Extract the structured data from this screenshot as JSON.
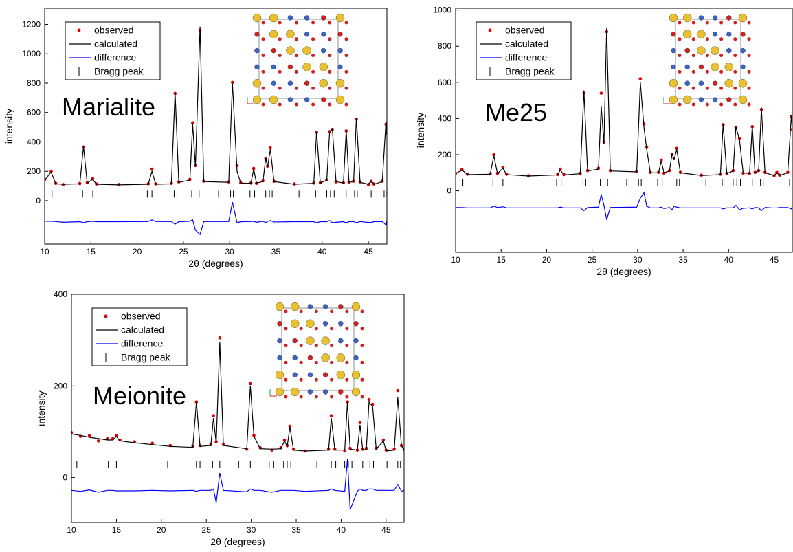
{
  "chart_data": [
    {
      "type": "line",
      "annotation": "Marialite",
      "x_label": "2θ (degrees)",
      "y_label": "intensity",
      "legend": "upper left",
      "xlim": [
        10,
        47
      ],
      "xticks": [
        10,
        15,
        20,
        25,
        30,
        35,
        40,
        45
      ],
      "ylim": [
        -295,
        1310
      ],
      "yticks": [
        0,
        200,
        400,
        600,
        800,
        1000,
        1200
      ],
      "x": [
        10,
        10.7,
        11.2,
        12,
        13.8,
        14.2,
        14.6,
        15.2,
        15.6,
        18,
        21.2,
        21.6,
        22,
        23.7,
        24.1,
        24.5,
        25.7,
        26,
        26.3,
        26.8,
        27.2,
        29.9,
        30.3,
        30.8,
        31.2,
        32.3,
        32.6,
        32.9,
        33.6,
        33.9,
        34.1,
        34.4,
        34.8,
        37,
        39.1,
        39.4,
        39.8,
        40.5,
        40.8,
        41.1,
        41.5,
        42.3,
        42.6,
        42.9,
        43.4,
        43.7,
        44.1,
        45,
        45.3,
        45.6,
        46.5,
        46.9,
        47
      ],
      "series": [
        {
          "name": "observed",
          "style": "points",
          "color": "#e00000",
          "values": [
            145,
            200,
            118,
            110,
            117,
            365,
            122,
            150,
            114,
            110,
            115,
            215,
            115,
            118,
            730,
            128,
            145,
            530,
            240,
            1160,
            133,
            128,
            805,
            240,
            122,
            120,
            220,
            118,
            135,
            285,
            235,
            360,
            132,
            114,
            120,
            465,
            122,
            142,
            470,
            485,
            128,
            122,
            475,
            127,
            133,
            555,
            128,
            110,
            132,
            114,
            133,
            520,
            460
          ]
        },
        {
          "name": "calculated",
          "style": "line",
          "color": "#000000",
          "values": [
            140,
            195,
            115,
            112,
            115,
            370,
            120,
            145,
            112,
            108,
            112,
            200,
            112,
            115,
            740,
            125,
            140,
            520,
            230,
            1185,
            130,
            125,
            800,
            200,
            120,
            118,
            215,
            120,
            130,
            290,
            230,
            350,
            130,
            112,
            118,
            470,
            120,
            140,
            460,
            490,
            130,
            120,
            480,
            125,
            130,
            560,
            125,
            112,
            135,
            112,
            130,
            540,
            450
          ]
        },
        {
          "name": "difference",
          "style": "line",
          "color": "#0000ff",
          "values": [
            -140,
            -140,
            -142,
            -147,
            -143,
            -150,
            -143,
            -140,
            -143,
            -143,
            -142,
            -130,
            -142,
            -142,
            -160,
            -143,
            -140,
            -130,
            -200,
            -230,
            -142,
            -142,
            -10,
            -150,
            -143,
            -142,
            -140,
            -147,
            -140,
            -150,
            -140,
            -135,
            -145,
            -143,
            -143,
            -150,
            -143,
            -143,
            -135,
            -150,
            -147,
            -143,
            -150,
            -143,
            -142,
            -150,
            -142,
            -148,
            -148,
            -143,
            -142,
            -165,
            -135
          ]
        },
        {
          "name": "Bragg peak",
          "style": "ticks",
          "color": "#000000",
          "x": [
            10.8,
            14.1,
            15.2,
            21.1,
            21.6,
            24.0,
            24.3,
            25.9,
            26.7,
            28.8,
            30.1,
            30.4,
            32.2,
            32.7,
            33.9,
            34.3,
            34.6,
            37.5,
            39.3,
            40.5,
            40.9,
            41.3,
            42.6,
            43.5,
            43.8,
            45.3,
            46.7,
            46.9
          ],
          "values": [
            45,
            45,
            45,
            45,
            45,
            45,
            45,
            45,
            45,
            45,
            45,
            45,
            45,
            45,
            45,
            45,
            45,
            45,
            45,
            45,
            45,
            45,
            45,
            45,
            45,
            45,
            45,
            45
          ]
        }
      ]
    },
    {
      "type": "line",
      "annotation": "Me25",
      "x_label": "2θ (degrees)",
      "y_label": "intensity",
      "legend": "upper left",
      "xlim": [
        10,
        47
      ],
      "xticks": [
        10,
        15,
        20,
        25,
        30,
        35,
        40,
        45
      ],
      "ylim": [
        -340,
        1010
      ],
      "yticks": [
        0,
        200,
        400,
        600,
        800,
        1000
      ],
      "x": [
        10,
        10.7,
        11.3,
        13.8,
        14.2,
        14.6,
        15.2,
        15.6,
        18,
        21.2,
        21.5,
        21.9,
        23.7,
        24.1,
        24.5,
        25.7,
        26,
        26.3,
        26.6,
        27,
        29.9,
        30.3,
        30.7,
        31,
        31.4,
        32.3,
        32.6,
        32.9,
        33.5,
        33.8,
        34,
        34.3,
        34.7,
        37,
        39.1,
        39.4,
        39.8,
        40.5,
        40.8,
        41.2,
        41.6,
        42.3,
        42.6,
        42.9,
        43.3,
        43.6,
        44,
        45,
        45.3,
        45.6,
        46.5,
        46.9,
        47
      ],
      "series": [
        {
          "name": "observed",
          "style": "points",
          "color": "#e00000",
          "values": [
            97,
            118,
            92,
            94,
            200,
            97,
            130,
            92,
            84,
            90,
            120,
            90,
            97,
            540,
            112,
            125,
            540,
            270,
            880,
            112,
            108,
            620,
            370,
            240,
            102,
            102,
            170,
            98,
            112,
            200,
            180,
            235,
            102,
            87,
            92,
            365,
            97,
            112,
            350,
            290,
            98,
            97,
            355,
            102,
            112,
            450,
            102,
            84,
            102,
            87,
            102,
            410,
            340
          ]
        },
        {
          "name": "calculated",
          "style": "line",
          "color": "#000000",
          "values": [
            95,
            115,
            90,
            92,
            195,
            95,
            125,
            90,
            82,
            88,
            115,
            88,
            95,
            555,
            110,
            120,
            470,
            260,
            900,
            110,
            105,
            600,
            350,
            230,
            100,
            100,
            165,
            100,
            110,
            210,
            170,
            230,
            100,
            85,
            90,
            370,
            95,
            110,
            355,
            280,
            100,
            95,
            360,
            100,
            110,
            460,
            100,
            85,
            100,
            85,
            100,
            420,
            330
          ]
        },
        {
          "name": "difference",
          "style": "line",
          "color": "#0000ff",
          "values": [
            -92,
            -92,
            -94,
            -94,
            -85,
            -92,
            -88,
            -94,
            -94,
            -94,
            -90,
            -94,
            -94,
            -110,
            -92,
            -90,
            -20,
            -80,
            -160,
            -92,
            -90,
            -40,
            -10,
            -85,
            -94,
            -94,
            -90,
            -98,
            -92,
            -105,
            -85,
            -90,
            -94,
            -94,
            -94,
            -100,
            -94,
            -94,
            -80,
            -105,
            -96,
            -94,
            -100,
            -92,
            -94,
            -110,
            -92,
            -95,
            -94,
            -92,
            -92,
            -100,
            -85
          ]
        },
        {
          "name": "Bragg peak",
          "style": "ticks",
          "color": "#000000",
          "x": [
            10.8,
            14.1,
            15.2,
            21.1,
            21.6,
            24.0,
            24.3,
            25.9,
            26.7,
            28.8,
            30.1,
            30.4,
            32.2,
            32.7,
            33.9,
            34.3,
            34.6,
            37.5,
            39.3,
            40.5,
            40.9,
            41.3,
            42.6,
            43.5,
            43.8,
            45.3,
            46.7
          ],
          "values": [
            45,
            45,
            45,
            45,
            45,
            45,
            45,
            45,
            45,
            45,
            45,
            45,
            45,
            45,
            45,
            45,
            45,
            45,
            45,
            45,
            45,
            45,
            45,
            45,
            45,
            45,
            45
          ]
        }
      ]
    },
    {
      "type": "line",
      "annotation": "Meionite",
      "x_label": "2θ (degrees)",
      "y_label": "intensity",
      "legend": "upper left",
      "xlim": [
        10,
        47
      ],
      "xticks": [
        10,
        15,
        20,
        25,
        30,
        35,
        40,
        45
      ],
      "ylim": [
        -98,
        400
      ],
      "yticks": [
        0,
        200,
        400
      ],
      "x": [
        10,
        11,
        12,
        13,
        14,
        14.6,
        15,
        15.4,
        17,
        19,
        21,
        23.5,
        23.9,
        24.3,
        25.5,
        25.8,
        26.1,
        26.5,
        26.9,
        29.5,
        29.9,
        30.3,
        31,
        32.3,
        33.3,
        33.7,
        34,
        34.3,
        34.7,
        36,
        38.6,
        38.9,
        39.3,
        40.4,
        40.7,
        41,
        41.8,
        42.1,
        42.4,
        42.8,
        43.1,
        43.5,
        43.9,
        44.7,
        45,
        45.9,
        46.3,
        46.7,
        47
      ],
      "series": [
        {
          "name": "observed",
          "style": "points",
          "color": "#e00000",
          "values": [
            98,
            90,
            92,
            80,
            85,
            85,
            92,
            82,
            78,
            75,
            70,
            68,
            165,
            70,
            72,
            135,
            78,
            305,
            72,
            62,
            205,
            92,
            65,
            60,
            65,
            82,
            70,
            112,
            62,
            58,
            62,
            135,
            62,
            58,
            165,
            64,
            60,
            120,
            62,
            64,
            170,
            160,
            64,
            82,
            60,
            62,
            190,
            70,
            62
          ]
        },
        {
          "name": "calculated",
          "style": "line",
          "color": "#000000",
          "values": [
            95,
            92,
            88,
            85,
            82,
            82,
            90,
            80,
            76,
            72,
            68,
            66,
            165,
            68,
            70,
            130,
            75,
            295,
            70,
            63,
            200,
            90,
            63,
            62,
            63,
            80,
            68,
            110,
            60,
            58,
            60,
            130,
            60,
            60,
            165,
            62,
            60,
            115,
            60,
            62,
            165,
            155,
            62,
            80,
            58,
            60,
            175,
            70,
            60
          ]
        },
        {
          "name": "difference",
          "style": "line",
          "color": "#0000ff",
          "values": [
            -28,
            -30,
            -27,
            -32,
            -28,
            -28,
            -29,
            -29,
            -29,
            -28,
            -29,
            -28,
            -30,
            -28,
            -28,
            -25,
            -55,
            10,
            -28,
            -31,
            -25,
            -28,
            -28,
            -32,
            -28,
            -28,
            -28,
            -28,
            -28,
            -30,
            -28,
            -25,
            -28,
            -30,
            40,
            -70,
            -30,
            -25,
            -28,
            -28,
            -25,
            -25,
            -28,
            -28,
            -28,
            -28,
            -15,
            -30,
            -28
          ]
        },
        {
          "name": "Bragg peak",
          "style": "ticks",
          "color": "#000000",
          "x": [
            10.6,
            14.1,
            15.0,
            20.7,
            21.2,
            23.9,
            24.3,
            25.7,
            26.5,
            28.6,
            29.9,
            30.3,
            32.0,
            32.5,
            33.6,
            34.0,
            34.4,
            37.3,
            38.9,
            39.4,
            40.4,
            40.8,
            41.2,
            42.4,
            43.2,
            43.6,
            45.1,
            46.3,
            46.6
          ],
          "values": [
            28,
            28,
            28,
            28,
            28,
            28,
            28,
            28,
            28,
            28,
            28,
            28,
            28,
            28,
            28,
            28,
            28,
            28,
            28,
            28,
            28,
            28,
            28,
            28,
            28,
            28,
            28,
            28,
            28
          ]
        }
      ]
    }
  ]
}
